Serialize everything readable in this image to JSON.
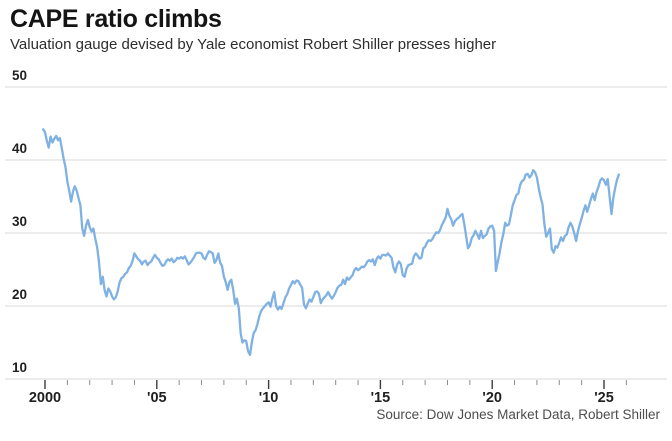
{
  "header": {
    "title": "CAPE ratio climbs",
    "subtitle": "Valuation gauge devised by Yale economist Robert Shiller presses higher"
  },
  "source_note": "Source: Dow Jones Market Data, Robert Shiller",
  "colors": {
    "line": "#7fb1e3",
    "grid": "#d9d9d9",
    "minor_tick": "#8c8c8c",
    "major_tick": "#3c3c3c",
    "axis_text": "#1f1f1f",
    "title_text": "#141414",
    "subtitle_text": "#2d2d2d",
    "source_text": "#4d4d4d"
  },
  "chart_data": {
    "type": "line",
    "title": "CAPE ratio climbs",
    "series_name": "Shiller CAPE ratio",
    "xlabel": "",
    "ylabel": "",
    "ylim": [
      10,
      50
    ],
    "yticks": [
      10,
      20,
      30,
      40,
      50
    ],
    "xlim_years": [
      1999.9,
      2026.2
    ],
    "xtick_years": [
      2000,
      2005,
      2010,
      2015,
      2020,
      2025
    ],
    "xtick_labels": [
      "2000",
      "'05",
      "'10",
      "'15",
      "'20",
      "'25"
    ],
    "minor_tick_years_range": [
      2000,
      2026
    ],
    "grid": "horizontal",
    "x_start_year": 1999.9167,
    "x_step_months": 1,
    "values": [
      44.2,
      43.8,
      42.6,
      41.7,
      43.2,
      42.4,
      42.9,
      43.3,
      42.7,
      43.0,
      41.6,
      40.2,
      39.0,
      37.0,
      35.8,
      34.3,
      35.7,
      36.4,
      35.8,
      34.8,
      33.8,
      30.6,
      29.6,
      31.0,
      31.8,
      30.8,
      30.2,
      30.6,
      29.2,
      28.0,
      26.0,
      23.0,
      24.0,
      22.2,
      21.3,
      22.4,
      22.0,
      21.3,
      20.9,
      21.2,
      22.0,
      23.2,
      23.8,
      24.0,
      24.4,
      24.6,
      25.2,
      25.5,
      26.2,
      27.2,
      26.8,
      26.4,
      26.2,
      25.7,
      26.1,
      26.2,
      25.6,
      25.9,
      26.1,
      26.6,
      27.0,
      26.6,
      26.4,
      25.9,
      25.5,
      25.6,
      26.1,
      26.4,
      26.2,
      26.5,
      26.0,
      26.2,
      26.6,
      26.5,
      26.7,
      26.5,
      26.8,
      26.3,
      25.7,
      25.9,
      26.3,
      26.7,
      27.2,
      27.3,
      27.3,
      27.2,
      26.6,
      26.4,
      27.0,
      27.5,
      27.4,
      27.2,
      25.9,
      26.3,
      27.2,
      25.9,
      25.5,
      24.0,
      23.3,
      22.2,
      23.3,
      23.6,
      22.2,
      20.3,
      21.0,
      19.7,
      16.2,
      15.0,
      15.3,
      15.2,
      13.8,
      13.3,
      15.0,
      16.3,
      16.7,
      17.5,
      18.6,
      19.3,
      19.7,
      20.0,
      20.3,
      20.5,
      19.9,
      21.0,
      21.9,
      20.0,
      19.5,
      19.9,
      19.6,
      20.4,
      21.2,
      21.6,
      22.4,
      22.9,
      23.4,
      23.1,
      23.5,
      23.4,
      22.9,
      22.5,
      20.2,
      19.7,
      20.3,
      20.9,
      20.6,
      21.2,
      21.9,
      22.0,
      21.7,
      20.4,
      20.9,
      21.2,
      21.5,
      21.9,
      21.4,
      21.0,
      21.4,
      21.9,
      22.5,
      22.8,
      22.9,
      23.6,
      23.0,
      23.9,
      23.6,
      23.9,
      24.2,
      24.9,
      25.2,
      24.9,
      25.1,
      25.4,
      25.3,
      25.6,
      26.1,
      26.3,
      26.1,
      26.4,
      25.6,
      26.5,
      26.8,
      26.5,
      27.0,
      27.0,
      26.9,
      27.2,
      26.9,
      26.6,
      25.3,
      24.6,
      25.7,
      26.1,
      25.7,
      24.2,
      24.0,
      25.1,
      25.6,
      25.7,
      25.8,
      26.8,
      27.2,
      26.9,
      26.5,
      26.6,
      27.9,
      28.1,
      28.7,
      29.0,
      28.9,
      29.2,
      29.7,
      30.1,
      30.0,
      30.4,
      31.1,
      31.6,
      32.1,
      33.3,
      32.4,
      31.9,
      31.0,
      31.6,
      31.9,
      32.1,
      32.4,
      32.6,
      31.2,
      29.6,
      27.9,
      28.3,
      29.3,
      29.7,
      30.3,
      29.8,
      29.2,
      30.3,
      29.3,
      29.6,
      29.8,
      30.6,
      30.9,
      31.0,
      30.3,
      24.8,
      26.1,
      27.3,
      28.8,
      29.9,
      31.4,
      31.0,
      31.2,
      32.4,
      33.8,
      34.5,
      35.2,
      35.4,
      36.6,
      37.1,
      37.3,
      38.0,
      38.1,
      37.6,
      37.9,
      38.6,
      38.3,
      37.6,
      36.1,
      34.9,
      33.9,
      31.2,
      29.5,
      30.0,
      30.6,
      27.8,
      27.3,
      28.2,
      28.0,
      28.7,
      29.4,
      28.9,
      29.6,
      29.8,
      30.8,
      31.4,
      30.9,
      30.0,
      28.9,
      30.2,
      31.2,
      32.0,
      33.0,
      33.8,
      32.9,
      33.8,
      34.7,
      35.4,
      34.5,
      35.6,
      36.3,
      37.2,
      37.5,
      37.2,
      36.6,
      37.4,
      35.0,
      32.6,
      34.8,
      36.2,
      37.3,
      38.0
    ]
  }
}
